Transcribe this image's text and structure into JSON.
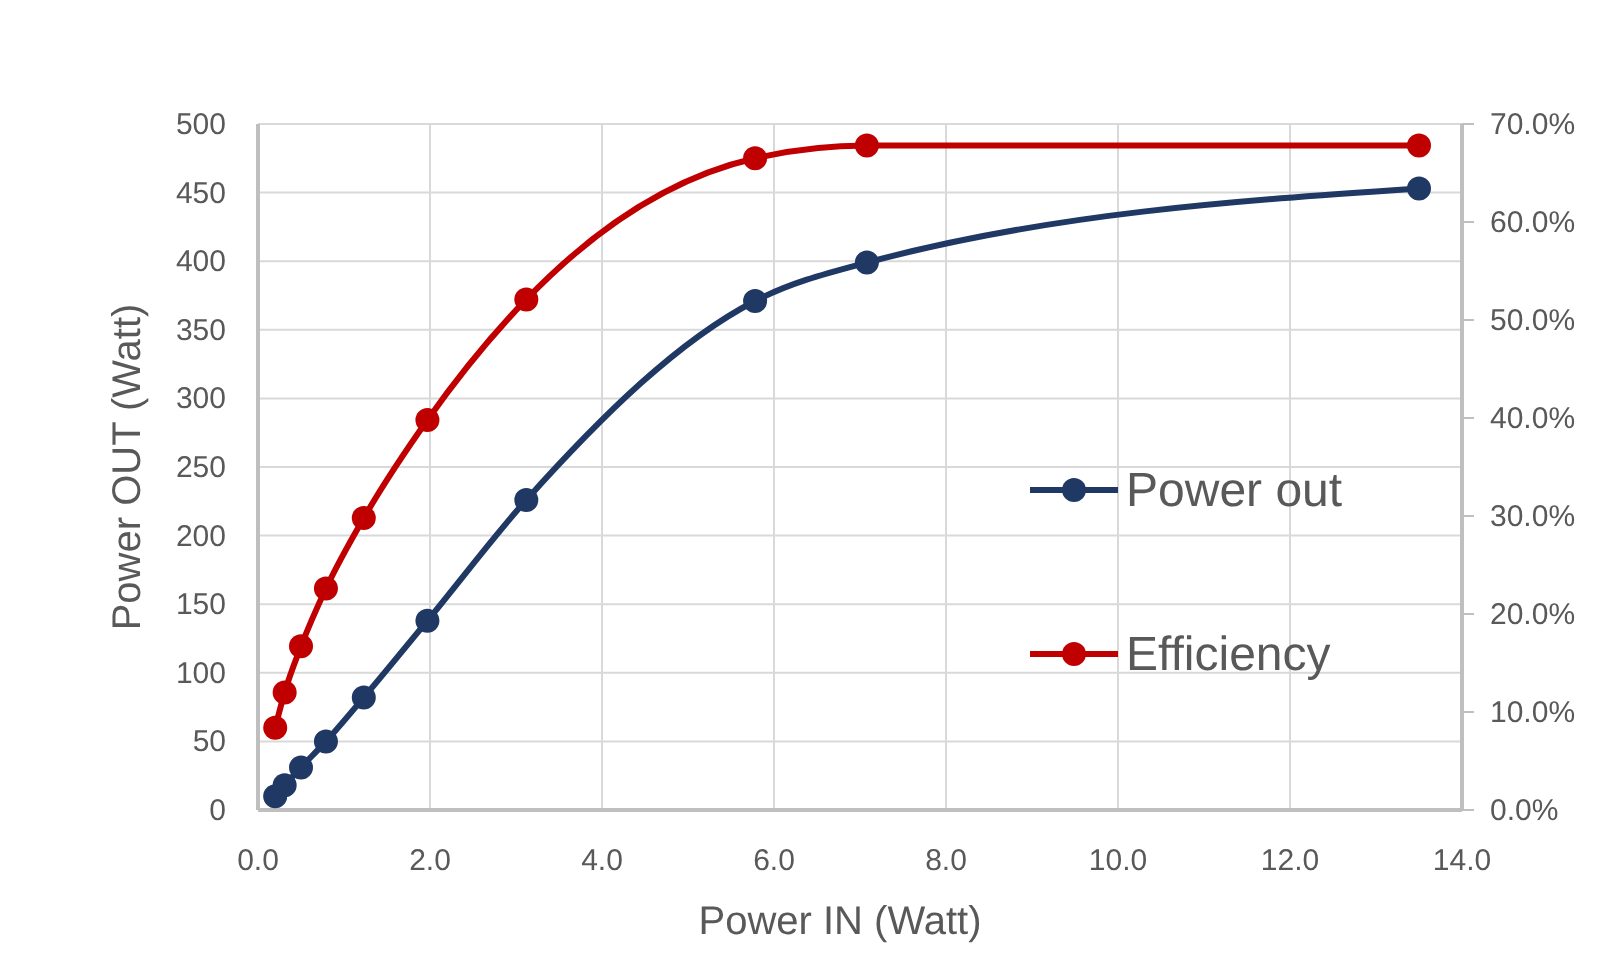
{
  "chart_data": {
    "type": "line",
    "xlabel": "Power IN (Watt)",
    "ylabel": "Power OUT (Watt)",
    "xlim": [
      0,
      14
    ],
    "xticks": [
      {
        "value": 0,
        "label": "0.0"
      },
      {
        "value": 2,
        "label": "2.0"
      },
      {
        "value": 4,
        "label": "4.0"
      },
      {
        "value": 6,
        "label": "6.0"
      },
      {
        "value": 8,
        "label": "8.0"
      },
      {
        "value": 10,
        "label": "10.0"
      },
      {
        "value": 12,
        "label": "12.0"
      },
      {
        "value": 14,
        "label": "14.0"
      }
    ],
    "ylim": [
      0,
      500
    ],
    "yticks": [
      0,
      50,
      100,
      150,
      200,
      250,
      300,
      350,
      400,
      450,
      500
    ],
    "y2lim": [
      0,
      70
    ],
    "y2ticks": [
      {
        "value": 0,
        "label": "0.0%"
      },
      {
        "value": 10,
        "label": "10.0%"
      },
      {
        "value": 20,
        "label": "20.0%"
      },
      {
        "value": 30,
        "label": "30.0%"
      },
      {
        "value": 40,
        "label": "40.0%"
      },
      {
        "value": 50,
        "label": "50.0%"
      },
      {
        "value": 60,
        "label": "60.0%"
      },
      {
        "value": 70,
        "label": "70.0%"
      }
    ],
    "grid": true,
    "legend": "right",
    "marker": "circle",
    "line_style": "solid",
    "x": [
      0.2,
      0.31,
      0.5,
      0.79,
      1.23,
      1.97,
      3.12,
      5.78,
      7.08,
      13.5
    ],
    "series": [
      {
        "name": "Power out",
        "color": "#203864",
        "values": [
          10,
          18,
          31,
          50,
          82,
          138,
          226,
          371,
          399,
          453
        ]
      },
      {
        "name": "Efficiency",
        "color": "#c00000",
        "axis": "y2",
        "values": [
          8.4,
          12,
          16.7,
          22.6,
          29.8,
          39.8,
          52.1,
          66.5,
          67.8,
          67.8
        ]
      }
    ]
  }
}
